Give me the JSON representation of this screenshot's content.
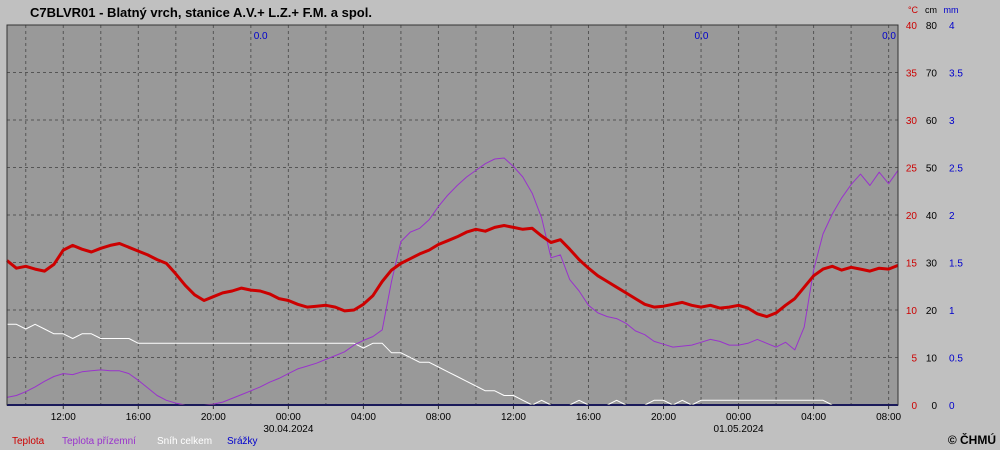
{
  "title": "C7BLVR01 - Blatný vrch, stanice A.V.+ L.Z.+ F.M. a spol.",
  "copyright": "© ČHMÚ",
  "colors": {
    "page_bg": "#c0c0c0",
    "plot_bg": "#999999",
    "grid": "#555555",
    "temperature": "#cc0000",
    "ground_temperature": "#9933cc",
    "snow": "#ffffff",
    "precip": "#000080",
    "axis_c": "#cc0000",
    "axis_mm": "#0000cc",
    "text": "#000000"
  },
  "legend": [
    {
      "name": "Teplota",
      "color": "#cc0000"
    },
    {
      "name": "Teplota přízemní",
      "color": "#9933cc"
    },
    {
      "name": "Sníh celkem",
      "color": "#ffffff"
    },
    {
      "name": "Srážky",
      "color": "#0000cc"
    }
  ],
  "chart_data": {
    "type": "line",
    "x_unit": "hours since 29.04.2024 09:00",
    "x_range": [
      0,
      47.5
    ],
    "x_tick_labels": [
      {
        "x": 3,
        "time": "12:00"
      },
      {
        "x": 7,
        "time": "16:00"
      },
      {
        "x": 11,
        "time": "20:00"
      },
      {
        "x": 15,
        "time": "00:00",
        "date": "30.04.2024"
      },
      {
        "x": 19,
        "time": "04:00"
      },
      {
        "x": 23,
        "time": "08:00"
      },
      {
        "x": 27,
        "time": "12:00"
      },
      {
        "x": 31,
        "time": "16:00"
      },
      {
        "x": 35,
        "time": "20:00"
      },
      {
        "x": 39,
        "time": "00:00",
        "date": "01.05.2024"
      },
      {
        "x": 43,
        "time": "04:00"
      },
      {
        "x": 47,
        "time": "08:00"
      }
    ],
    "y_axis_c": {
      "unit": "°C",
      "ticks": [
        0,
        5,
        10,
        15,
        20,
        25,
        30,
        35,
        40
      ],
      "ylim": [
        0,
        40
      ]
    },
    "y_axis_cm": {
      "unit": "cm",
      "ticks": [
        0,
        10,
        20,
        30,
        40,
        50,
        60,
        70,
        80
      ],
      "ylim": [
        0,
        80
      ]
    },
    "y_axis_mm": {
      "unit": "mm",
      "ticks": [
        0,
        0.5,
        1,
        1.5,
        2,
        2.5,
        3,
        3.5,
        4
      ],
      "ylim": [
        0,
        4
      ]
    },
    "precip_totals": [
      {
        "x": 14,
        "label": "0.0"
      },
      {
        "x": 37.5,
        "label": "0.0"
      },
      {
        "x": 47.5,
        "label": "0.0"
      }
    ],
    "series": [
      {
        "name": "Teplota",
        "axis": "c",
        "x": [
          0,
          0.5,
          1,
          1.5,
          2,
          2.5,
          3,
          3.5,
          4,
          4.5,
          5,
          5.5,
          6,
          6.5,
          7,
          7.5,
          8,
          8.5,
          9,
          9.5,
          10,
          10.5,
          11,
          11.5,
          12,
          12.5,
          13,
          13.5,
          14,
          14.5,
          15,
          15.5,
          16,
          16.5,
          17,
          17.5,
          18,
          18.5,
          19,
          19.5,
          20,
          20.5,
          21,
          21.5,
          22,
          22.5,
          23,
          23.5,
          24,
          24.5,
          25,
          25.5,
          26,
          26.5,
          27,
          27.5,
          28,
          28.5,
          29,
          29.5,
          30,
          30.5,
          31,
          31.5,
          32,
          32.5,
          33,
          33.5,
          34,
          34.5,
          35,
          35.5,
          36,
          36.5,
          37,
          37.5,
          38,
          38.5,
          39,
          39.5,
          40,
          40.5,
          41,
          41.5,
          42,
          42.5,
          43,
          43.5,
          44,
          44.5,
          45,
          45.5,
          46,
          46.5,
          47,
          47.5
        ],
        "values": [
          15.2,
          14.4,
          14.6,
          14.3,
          14.1,
          14.8,
          16.3,
          16.8,
          16.4,
          16.1,
          16.5,
          16.8,
          17.0,
          16.6,
          16.2,
          15.8,
          15.3,
          14.9,
          13.8,
          12.6,
          11.6,
          11.0,
          11.4,
          11.8,
          12.0,
          12.3,
          12.1,
          12.0,
          11.7,
          11.2,
          11.0,
          10.6,
          10.3,
          10.4,
          10.5,
          10.3,
          9.9,
          10.0,
          10.6,
          11.5,
          13.0,
          14.2,
          14.9,
          15.4,
          15.9,
          16.3,
          16.9,
          17.3,
          17.7,
          18.2,
          18.5,
          18.3,
          18.7,
          18.9,
          18.7,
          18.5,
          18.6,
          17.8,
          17.1,
          17.4,
          16.4,
          15.3,
          14.4,
          13.6,
          13.0,
          12.4,
          11.8,
          11.2,
          10.6,
          10.3,
          10.4,
          10.6,
          10.8,
          10.5,
          10.3,
          10.5,
          10.2,
          10.3,
          10.5,
          10.2,
          9.6,
          9.3,
          9.7,
          10.5,
          11.2,
          12.4,
          13.6,
          14.3,
          14.6,
          14.2,
          14.5,
          14.3,
          14.1,
          14.4,
          14.3,
          14.7
        ]
      },
      {
        "name": "Teplota přízemní",
        "axis": "c",
        "x": [
          0,
          0.5,
          1,
          1.5,
          2,
          2.5,
          3,
          3.5,
          4,
          4.5,
          5,
          5.5,
          6,
          6.5,
          7,
          7.5,
          8,
          8.5,
          9,
          9.5,
          10,
          10.5,
          11,
          11.5,
          12,
          12.5,
          13,
          13.5,
          14,
          14.5,
          15,
          15.5,
          16,
          16.5,
          17,
          17.5,
          18,
          18.5,
          19,
          19.5,
          20,
          20.5,
          21,
          21.5,
          22,
          22.5,
          23,
          23.5,
          24,
          24.5,
          25,
          25.5,
          26,
          26.5,
          27,
          27.5,
          28,
          28.5,
          29,
          29.5,
          30,
          30.5,
          31,
          31.5,
          32,
          32.5,
          33,
          33.5,
          34,
          34.5,
          35,
          35.5,
          36,
          36.5,
          37,
          37.5,
          38,
          38.5,
          39,
          39.5,
          40,
          40.5,
          41,
          41.5,
          42,
          42.5,
          43,
          43.5,
          44,
          44.5,
          45,
          45.5,
          46,
          46.5,
          47,
          47.5
        ],
        "values": [
          0.8,
          1.0,
          1.4,
          1.9,
          2.5,
          3.0,
          3.3,
          3.2,
          3.5,
          3.6,
          3.7,
          3.6,
          3.6,
          3.3,
          2.6,
          1.8,
          1.0,
          0.5,
          0.2,
          0.0,
          0.0,
          0.0,
          0.1,
          0.3,
          0.7,
          1.1,
          1.5,
          1.9,
          2.4,
          2.8,
          3.3,
          3.8,
          4.1,
          4.4,
          4.8,
          5.2,
          5.6,
          6.3,
          6.8,
          7.2,
          7.9,
          13.0,
          17.2,
          18.2,
          18.6,
          19.5,
          20.9,
          22.1,
          23.1,
          24.0,
          24.7,
          25.4,
          25.9,
          26.0,
          25.1,
          24.0,
          22.3,
          19.7,
          15.5,
          15.8,
          13.2,
          12.0,
          10.5,
          9.7,
          9.3,
          9.1,
          8.6,
          7.8,
          7.4,
          6.7,
          6.4,
          6.1,
          6.2,
          6.3,
          6.6,
          6.9,
          6.7,
          6.3,
          6.3,
          6.5,
          6.9,
          6.5,
          6.1,
          6.6,
          5.8,
          8.2,
          14.2,
          18.0,
          20.1,
          21.8,
          23.2,
          24.3,
          23.1,
          24.5,
          23.3,
          24.7
        ]
      },
      {
        "name": "Sníh celkem",
        "axis": "cm",
        "x": [
          0,
          0.5,
          1,
          1.5,
          2,
          2.5,
          3,
          3.5,
          4,
          4.5,
          5,
          5.5,
          6,
          6.5,
          7,
          7.5,
          8,
          8.5,
          9,
          9.5,
          10,
          10.5,
          11,
          11.5,
          12,
          12.5,
          13,
          13.5,
          14,
          14.5,
          15,
          15.5,
          16,
          16.5,
          17,
          17.5,
          18,
          18.5,
          19,
          19.5,
          20,
          20.5,
          21,
          21.5,
          22,
          22.5,
          23,
          23.5,
          24,
          24.5,
          25,
          25.5,
          26,
          26.5,
          27,
          27.5,
          28,
          28.5,
          29,
          29.5,
          30,
          30.5,
          31,
          31.5,
          32,
          32.5,
          33,
          33.5,
          34,
          34.5,
          35,
          35.5,
          36,
          36.5,
          37,
          37.5,
          38,
          38.5,
          39,
          39.5,
          40,
          40.5,
          41,
          41.5,
          42,
          42.5,
          43,
          43.5,
          44,
          44.5,
          45,
          45.5,
          46,
          46.5,
          47,
          47.5
        ],
        "values": [
          17,
          17,
          16,
          17,
          16,
          15,
          15,
          14,
          15,
          15,
          14,
          14,
          14,
          14,
          13,
          13,
          13,
          13,
          13,
          13,
          13,
          13,
          13,
          13,
          13,
          13,
          13,
          13,
          13,
          13,
          13,
          13,
          13,
          13,
          13,
          13,
          13,
          13,
          12,
          13,
          13,
          11,
          11,
          10,
          9,
          9,
          8,
          7,
          6,
          5,
          4,
          3,
          3,
          2,
          2,
          1,
          0,
          1,
          0,
          0,
          0,
          1,
          0,
          0,
          0,
          1,
          0,
          0,
          0,
          1,
          1,
          0,
          1,
          0,
          1,
          1,
          1,
          1,
          1,
          1,
          1,
          1,
          1,
          1,
          1,
          1,
          1,
          1,
          0,
          0,
          0,
          0,
          0,
          0,
          0,
          0
        ]
      },
      {
        "name": "Srážky",
        "axis": "mm",
        "x": [
          0,
          47.5
        ],
        "values": [
          0,
          0
        ]
      }
    ]
  }
}
